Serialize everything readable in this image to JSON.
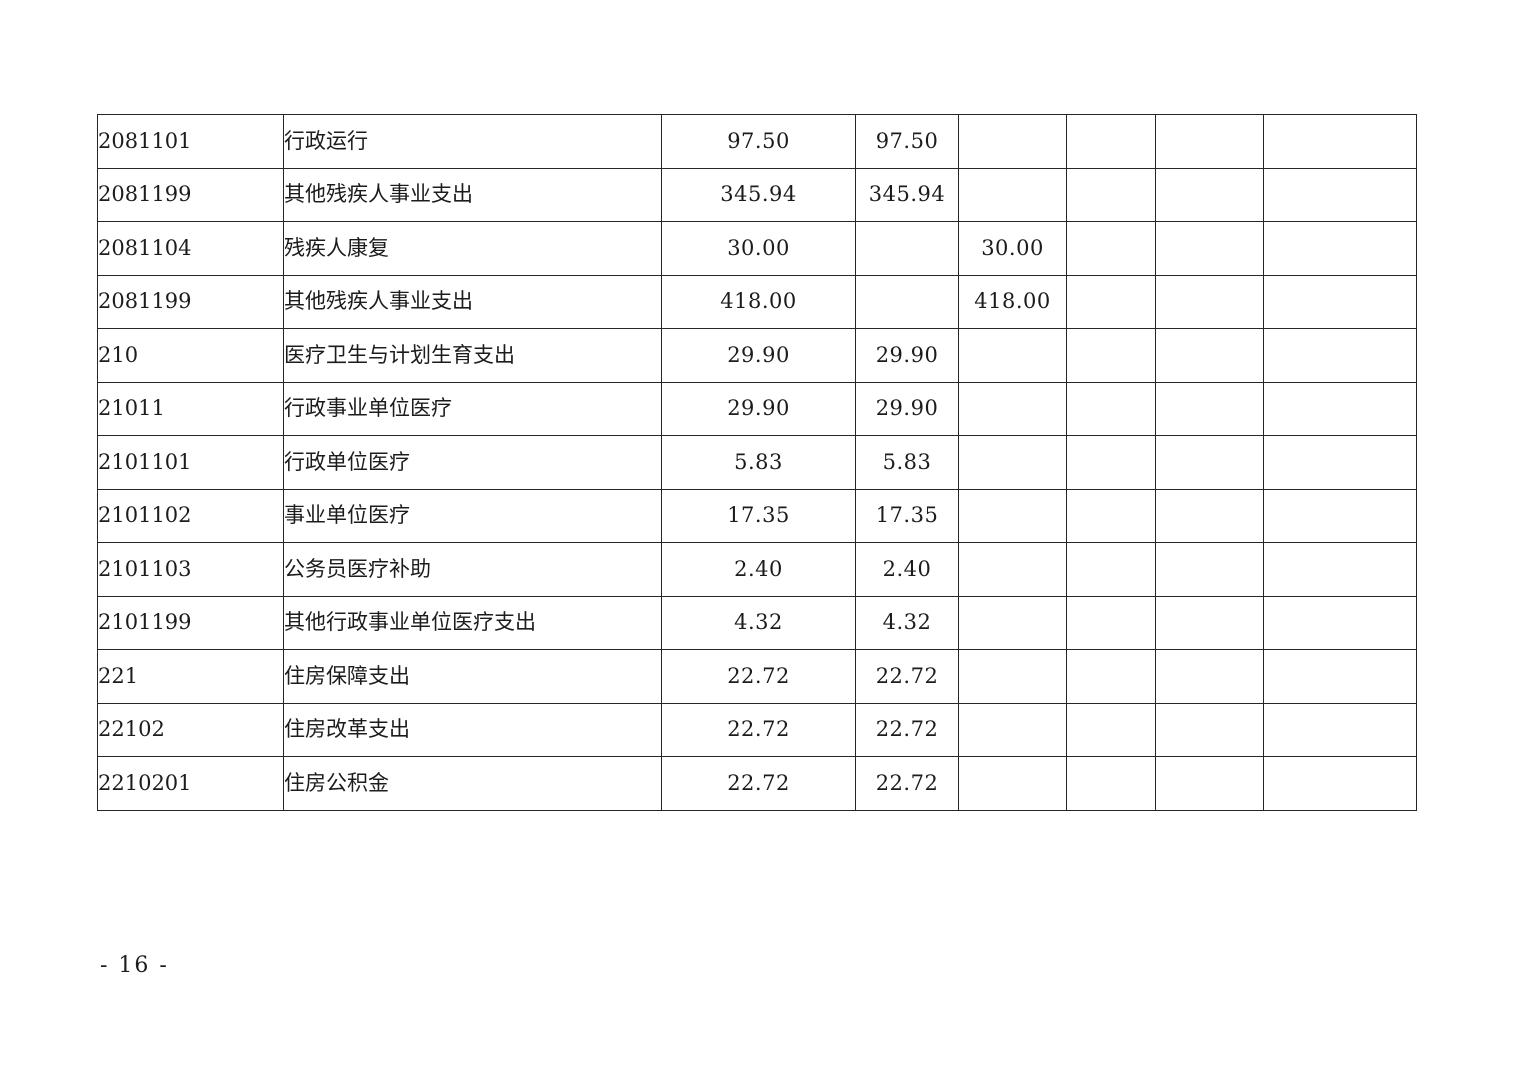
{
  "page": {
    "background": "#ffffff",
    "border_color": "#262626",
    "page_number_label": "- 16 -"
  },
  "table": {
    "columns": 8,
    "rows": [
      {
        "code": "2081101",
        "code_indent": 1,
        "name": "行政运行",
        "name_indent": 2,
        "amounts": [
          "97.50",
          "97.50",
          "",
          "",
          "",
          ""
        ]
      },
      {
        "code": "2081199",
        "code_indent": 1,
        "name": "其他残疾人事业支出",
        "name_indent": 1,
        "amounts": [
          "345.94",
          "345.94",
          "",
          "",
          "",
          ""
        ]
      },
      {
        "code": "2081104",
        "code_indent": 1,
        "name": "残疾人康复",
        "name_indent": 1,
        "amounts": [
          "30.00",
          "",
          "30.00",
          "",
          "",
          ""
        ]
      },
      {
        "code": "2081199",
        "code_indent": 1,
        "name": "其他残疾人事业支出",
        "name_indent": 1,
        "amounts": [
          "418.00",
          "",
          "418.00",
          "",
          "",
          ""
        ]
      },
      {
        "code": "210",
        "code_indent": 0,
        "name": "医疗卫生与计划生育支出",
        "name_indent": 0,
        "amounts": [
          "29.90",
          "29.90",
          "",
          "",
          "",
          ""
        ]
      },
      {
        "code": "21011",
        "code_indent": 1,
        "name": "行政事业单位医疗",
        "name_indent": 1,
        "amounts": [
          "29.90",
          "29.90",
          "",
          "",
          "",
          ""
        ]
      },
      {
        "code": "2101101",
        "code_indent": 2,
        "name": "行政单位医疗",
        "name_indent": 2,
        "amounts": [
          "5.83",
          "5.83",
          "",
          "",
          "",
          ""
        ]
      },
      {
        "code": "2101102",
        "code_indent": 2,
        "name": "事业单位医疗",
        "name_indent": 2,
        "amounts": [
          "17.35",
          "17.35",
          "",
          "",
          "",
          ""
        ]
      },
      {
        "code": "2101103",
        "code_indent": 2,
        "name": "公务员医疗补助",
        "name_indent": 2,
        "amounts": [
          "2.40",
          "2.40",
          "",
          "",
          "",
          ""
        ]
      },
      {
        "code": "2101199",
        "code_indent": 2,
        "name": "其他行政事业单位医疗支出",
        "name_indent": 2,
        "amounts": [
          "4.32",
          "4.32",
          "",
          "",
          "",
          ""
        ]
      },
      {
        "code": "221",
        "code_indent": 0,
        "name": "住房保障支出",
        "name_indent": 0,
        "amounts": [
          "22.72",
          "22.72",
          "",
          "",
          "",
          ""
        ]
      },
      {
        "code": "22102",
        "code_indent": 1,
        "name": "住房改革支出",
        "name_indent": 1,
        "amounts": [
          "22.72",
          "22.72",
          "",
          "",
          "",
          ""
        ]
      },
      {
        "code": "2210201",
        "code_indent": 2,
        "name": "住房公积金",
        "name_indent": 2,
        "amounts": [
          "22.72",
          "22.72",
          "",
          "",
          "",
          ""
        ]
      }
    ]
  }
}
